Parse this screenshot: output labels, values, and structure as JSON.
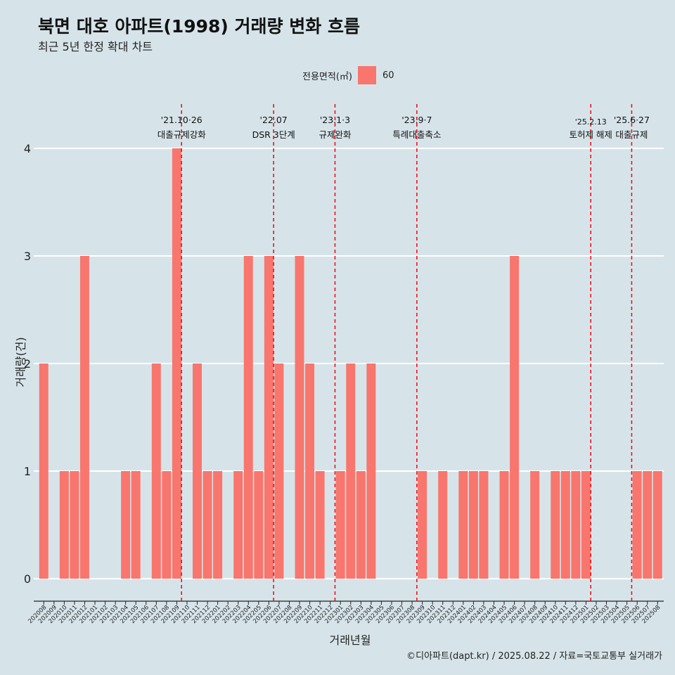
{
  "title": "북면 대호 아파트(1998) 거래량 변화 흐름",
  "subtitle": "최근 5년 한정 확대 차트",
  "legend": {
    "title": "전용면적(㎡)",
    "items": [
      {
        "label": "60",
        "color": "#f8766d"
      }
    ]
  },
  "caption": "©디아파트(dapt.kr) / 2025.08.22 / 자료=국토교통부 실거래가",
  "chart_data": {
    "type": "bar",
    "title": "북면 대호 아파트(1998) 거래량 변화 흐름",
    "subtitle": "최근 5년 한정 확대 차트",
    "xlabel": "거래년월",
    "ylabel": "거래량(건)",
    "ylim": [
      0,
      4
    ],
    "yticks": [
      0,
      1,
      2,
      3,
      4
    ],
    "grid": "horizontal",
    "legend_position": "top",
    "bar_color": "#f8766d",
    "categories": [
      "202008",
      "202009",
      "202010",
      "202011",
      "202012",
      "202101",
      "202102",
      "202103",
      "202104",
      "202105",
      "202106",
      "202107",
      "202108",
      "202109",
      "202110",
      "202111",
      "202112",
      "202201",
      "202202",
      "202203",
      "202204",
      "202205",
      "202206",
      "202207",
      "202208",
      "202209",
      "202210",
      "202211",
      "202212",
      "202301",
      "202302",
      "202303",
      "202304",
      "202305",
      "202306",
      "202307",
      "202308",
      "202309",
      "202310",
      "202311",
      "202312",
      "202401",
      "202402",
      "202403",
      "202404",
      "202405",
      "202406",
      "202407",
      "202408",
      "202409",
      "202410",
      "202411",
      "202412",
      "202501",
      "202502",
      "202503",
      "202504",
      "202505",
      "202506",
      "202507",
      "202508"
    ],
    "series": [
      {
        "name": "60",
        "values": [
          2,
          0,
          1,
          1,
          3,
          0,
          0,
          0,
          1,
          1,
          0,
          2,
          1,
          4,
          0,
          2,
          1,
          1,
          0,
          1,
          3,
          1,
          3,
          2,
          0,
          3,
          2,
          1,
          0,
          1,
          2,
          1,
          2,
          0,
          0,
          0,
          0,
          1,
          0,
          1,
          0,
          1,
          1,
          1,
          0,
          1,
          3,
          0,
          1,
          0,
          1,
          1,
          1,
          1,
          0,
          0,
          0,
          0,
          1,
          1,
          1
        ]
      }
    ],
    "annotations": [
      {
        "category": "202110",
        "date": "'21.10·26",
        "text": "대출규제강화"
      },
      {
        "category": "202207",
        "date": "'22.07",
        "text": "DSR 3단계"
      },
      {
        "category": "202301",
        "date": "'23.1·3",
        "text": "규제완화"
      },
      {
        "category": "202309",
        "date": "'23.9·7",
        "text": "특례대출축소"
      },
      {
        "category": "202502",
        "date": "'25.2.13",
        "text": "토허제 해제"
      },
      {
        "category": "202506",
        "date": "'25.6·27",
        "text": "대출규제"
      }
    ]
  }
}
